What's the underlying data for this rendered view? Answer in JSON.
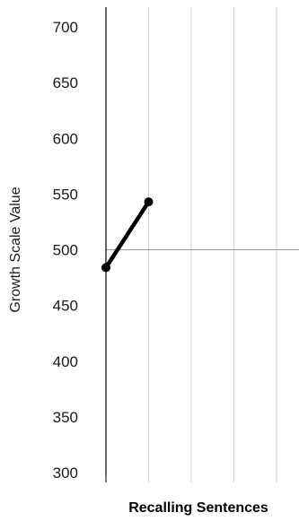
{
  "chart_data": {
    "type": "line",
    "title": "",
    "xlabel": "Recalling Sentences",
    "ylabel": "Growth Scale Value",
    "ylim": [
      300,
      700
    ],
    "yticks": [
      300,
      350,
      400,
      450,
      500,
      550,
      600,
      650,
      700
    ],
    "x_slots": 5,
    "reference_line": 500,
    "grid": "vertical",
    "series": [
      {
        "x": [
          0,
          1
        ],
        "y": [
          484,
          543
        ]
      }
    ]
  }
}
